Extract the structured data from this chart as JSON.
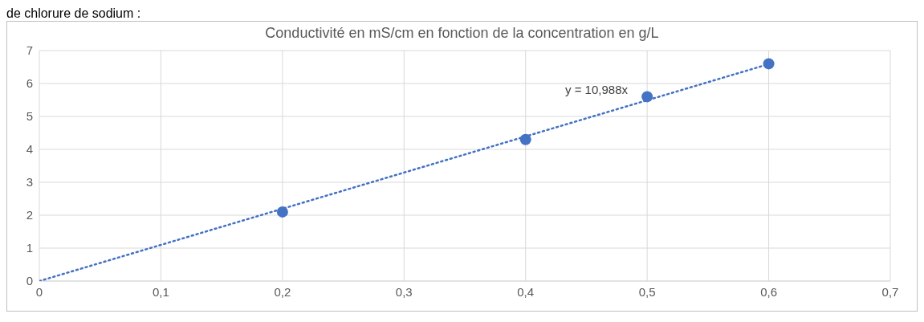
{
  "chart_data": {
    "type": "scatter",
    "title": "Conductivité en mS/cm en fonction de la concentration en g/L",
    "annotations": [
      "de chlorure de sodium :",
      "y = 10,988x"
    ],
    "series": [
      {
        "color": "#4472c4",
        "x": [
          0.2,
          0.4,
          0.5,
          0.6
        ],
        "values": [
          2.1,
          4.3,
          5.6,
          6.6
        ],
        "marker": "circle"
      },
      {
        "type": "line",
        "color": "#4472c4",
        "x": [
          0,
          0.6
        ],
        "values": [
          0,
          6.59
        ],
        "line_style": "dotted",
        "marker": "none"
      }
    ],
    "xlim": [
      0,
      0.7
    ],
    "xticks": [
      0,
      {
        "value": 0.1,
        "label": "0,1"
      },
      {
        "value": 0.2,
        "label": "0,2"
      },
      {
        "value": 0.3,
        "label": "0,3"
      },
      {
        "value": 0.4,
        "label": "0,4"
      },
      {
        "value": 0.5,
        "label": "0,5"
      },
      {
        "value": 0.6,
        "label": "0,6"
      },
      {
        "value": 0.7,
        "label": "0,7"
      }
    ],
    "ylim": [
      0,
      7
    ],
    "yticks": [
      0,
      1,
      2,
      3,
      4,
      5,
      6,
      7
    ],
    "grid": true,
    "legend": false
  }
}
